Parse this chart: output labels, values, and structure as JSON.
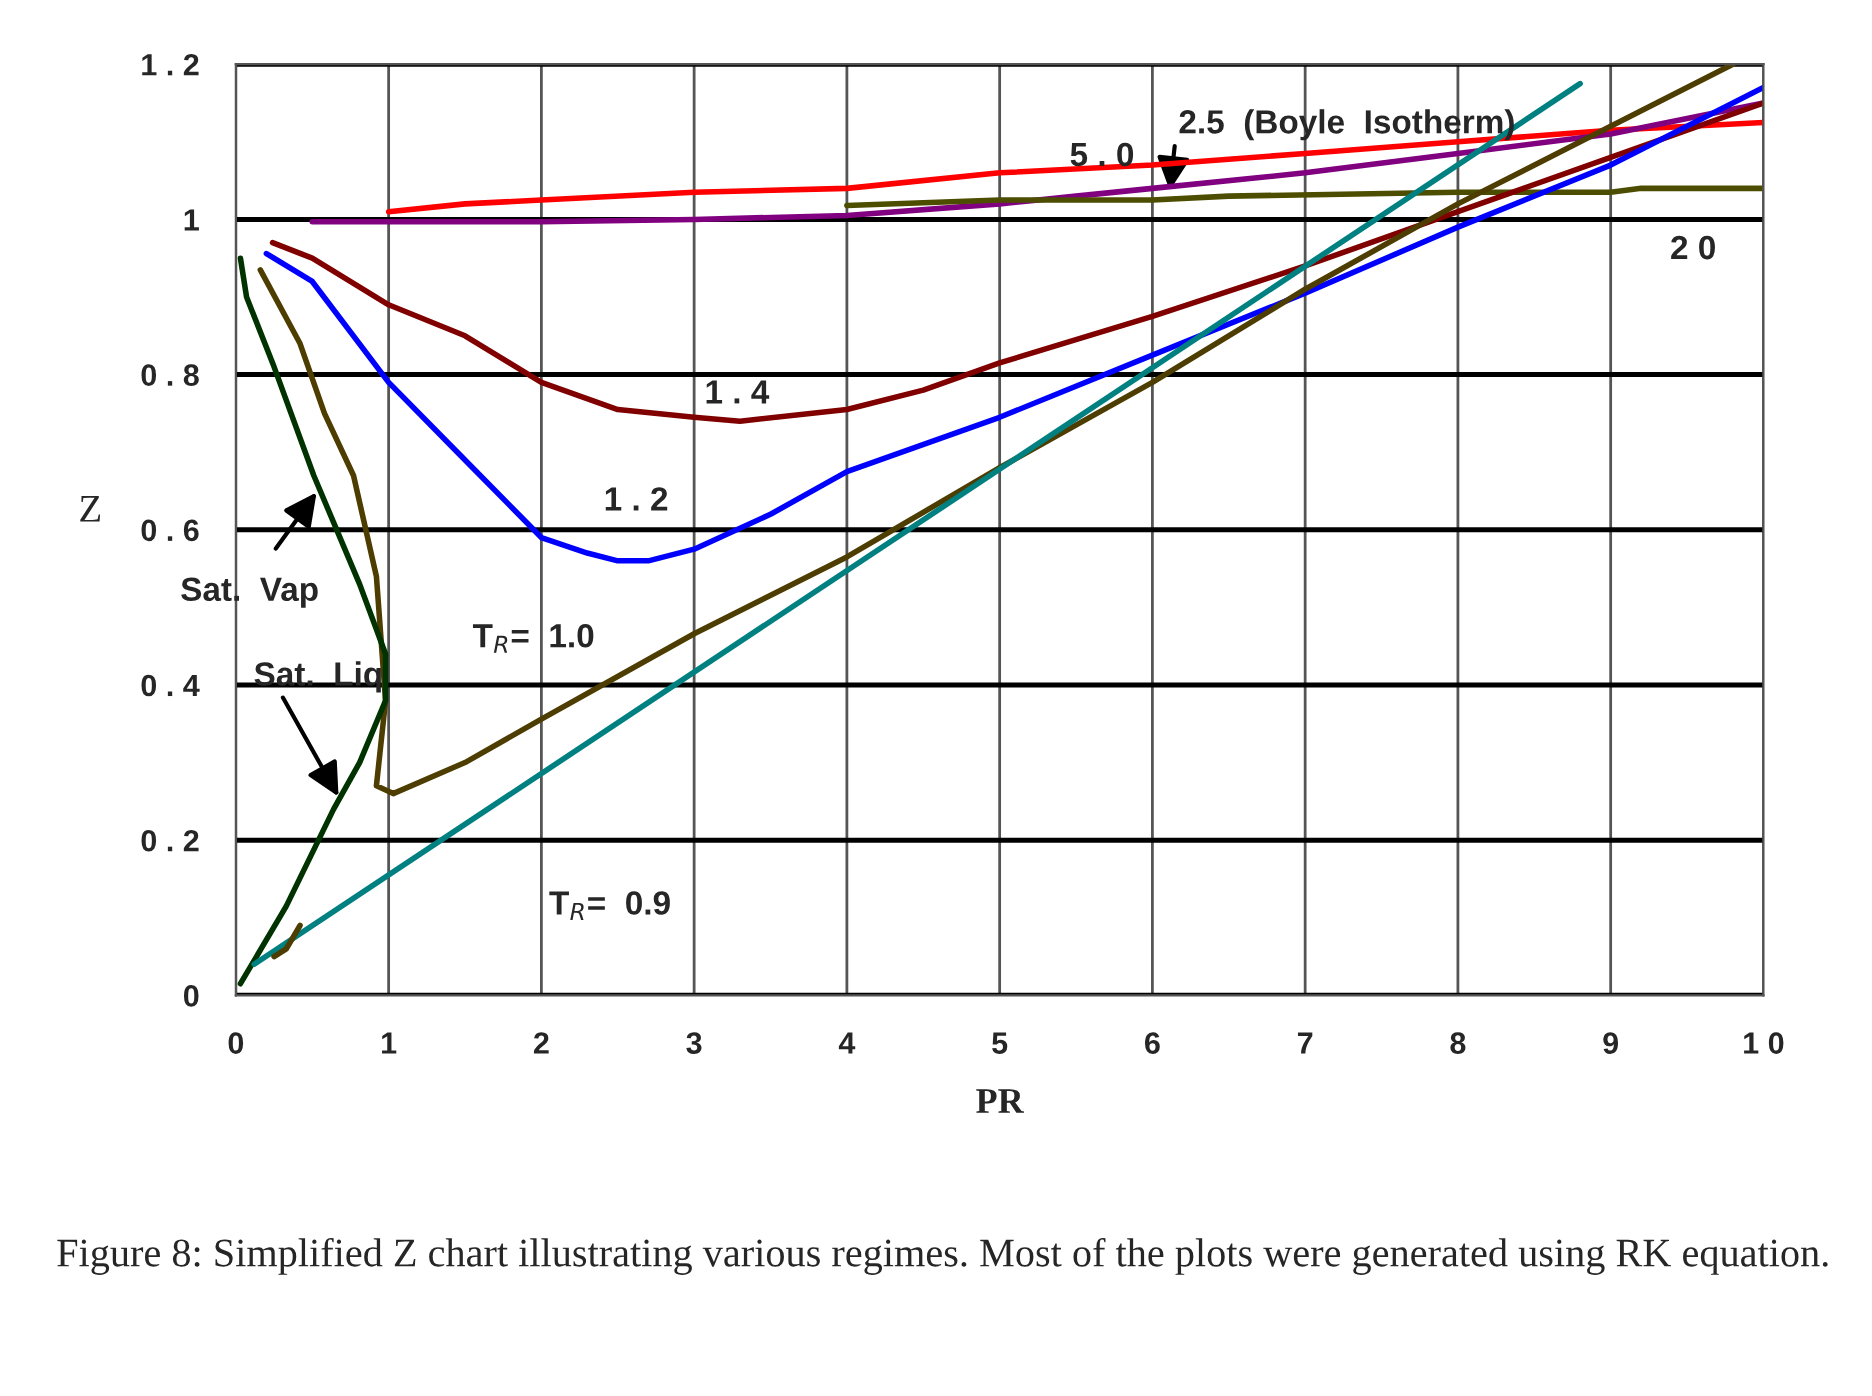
{
  "chart_data": {
    "type": "line",
    "xlabel": "PR",
    "ylabel": "Z",
    "xlim": [
      0,
      10
    ],
    "ylim": [
      0,
      1.2
    ],
    "xticks": [
      0,
      1,
      2,
      3,
      4,
      5,
      6,
      7,
      8,
      9,
      {
        "value": 10,
        "label": "1 0"
      }
    ],
    "yticks": [
      0,
      {
        "value": 0.2,
        "label": "0 . 2"
      },
      {
        "value": 0.4,
        "label": "0 . 4"
      },
      {
        "value": 0.6,
        "label": "0 . 6"
      },
      {
        "value": 0.8,
        "label": "0 . 8"
      },
      1,
      {
        "value": 1.2,
        "label": "1 . 2"
      }
    ],
    "grid": true,
    "marker": "none",
    "line_style": "solid",
    "series": [
      {
        "color": "#ff0000",
        "x": [
          1,
          1.5,
          2,
          3,
          4,
          5,
          6,
          7,
          8,
          9,
          10
        ],
        "values": [
          1.01,
          1.02,
          1.025,
          1.035,
          1.04,
          1.06,
          1.07,
          1.085,
          1.1,
          1.115,
          1.125
        ]
      },
      {
        "color": "#800080",
        "x": [
          0.5,
          2,
          3,
          4,
          5,
          5.5,
          6,
          7,
          8,
          9,
          10
        ],
        "values": [
          0.997,
          0.997,
          1.0,
          1.005,
          1.02,
          1.03,
          1.04,
          1.06,
          1.085,
          1.11,
          1.15
        ]
      },
      {
        "color": "#4d4d00",
        "x": [
          4,
          5,
          6,
          6.5,
          8,
          9,
          9.2,
          10
        ],
        "values": [
          1.018,
          1.025,
          1.025,
          1.03,
          1.035,
          1.035,
          1.04,
          1.04
        ]
      },
      {
        "color": "#800000",
        "x": [
          0.24,
          0.5,
          1,
          1.5,
          2,
          2.5,
          3,
          3.3,
          4,
          4.5,
          5,
          6,
          7,
          8,
          9,
          10
        ],
        "values": [
          0.97,
          0.95,
          0.89,
          0.85,
          0.79,
          0.755,
          0.745,
          0.74,
          0.755,
          0.78,
          0.815,
          0.875,
          0.94,
          1.01,
          1.08,
          1.15
        ]
      },
      {
        "color": "#0000ff",
        "x": [
          0.2,
          0.5,
          1,
          1.5,
          2,
          2.3,
          2.5,
          2.7,
          3,
          3.5,
          4,
          5,
          6,
          7,
          8,
          9,
          10
        ],
        "values": [
          0.956,
          0.92,
          0.79,
          0.69,
          0.59,
          0.57,
          0.56,
          0.56,
          0.575,
          0.62,
          0.675,
          0.745,
          0.825,
          0.905,
          0.99,
          1.07,
          1.17
        ]
      },
      {
        "color": "#4d3d00",
        "x": [
          0.16,
          0.42,
          0.58,
          0.77,
          0.92,
          0.98,
          0.92,
          1.03,
          1.5,
          2,
          3,
          4,
          5,
          6,
          7,
          8,
          9,
          9.8
        ],
        "values": [
          0.935,
          0.84,
          0.75,
          0.67,
          0.54,
          0.38,
          0.27,
          0.26,
          0.3,
          0.356,
          0.466,
          0.565,
          0.68,
          0.79,
          0.91,
          1.02,
          1.12,
          1.2
        ]
      },
      {
        "color": "#003300",
        "x": [
          0.03,
          0.07,
          0.25,
          0.51,
          0.81,
          0.98,
          0.98,
          0.81,
          0.64,
          0.33,
          0.03
        ],
        "values": [
          0.95,
          0.9,
          0.81,
          0.67,
          0.53,
          0.44,
          0.38,
          0.3,
          0.24,
          0.115,
          0.015
        ]
      },
      {
        "color": "#008080",
        "x": [
          0.12,
          8.8
        ],
        "values": [
          0.04,
          1.175
        ]
      },
      {
        "color": "#4d3d00",
        "x": [
          0.25,
          0.33,
          0.42
        ],
        "values": [
          0.05,
          0.06,
          0.09
        ]
      }
    ],
    "annotations": [
      "1 . 4",
      "1 . 2",
      "T$_{R}$=  1.0",
      "T$_{R}$=  0.9",
      "5 . 0",
      {
        "text": "2.5  (Boyle  Isotherm)",
        "x": 6.11,
        "y": 1.03
      },
      "2 0",
      {
        "text": "Sat.  Vap",
        "x": 0.55,
        "y": 0.654
      },
      {
        "text": "Sat.  Liq",
        "x": 0.69,
        "y": 0.25
      },
      "Figure 8: Simplified Z chart illustrating various regimes. Most of the plots were generated using RK equation."
    ]
  }
}
